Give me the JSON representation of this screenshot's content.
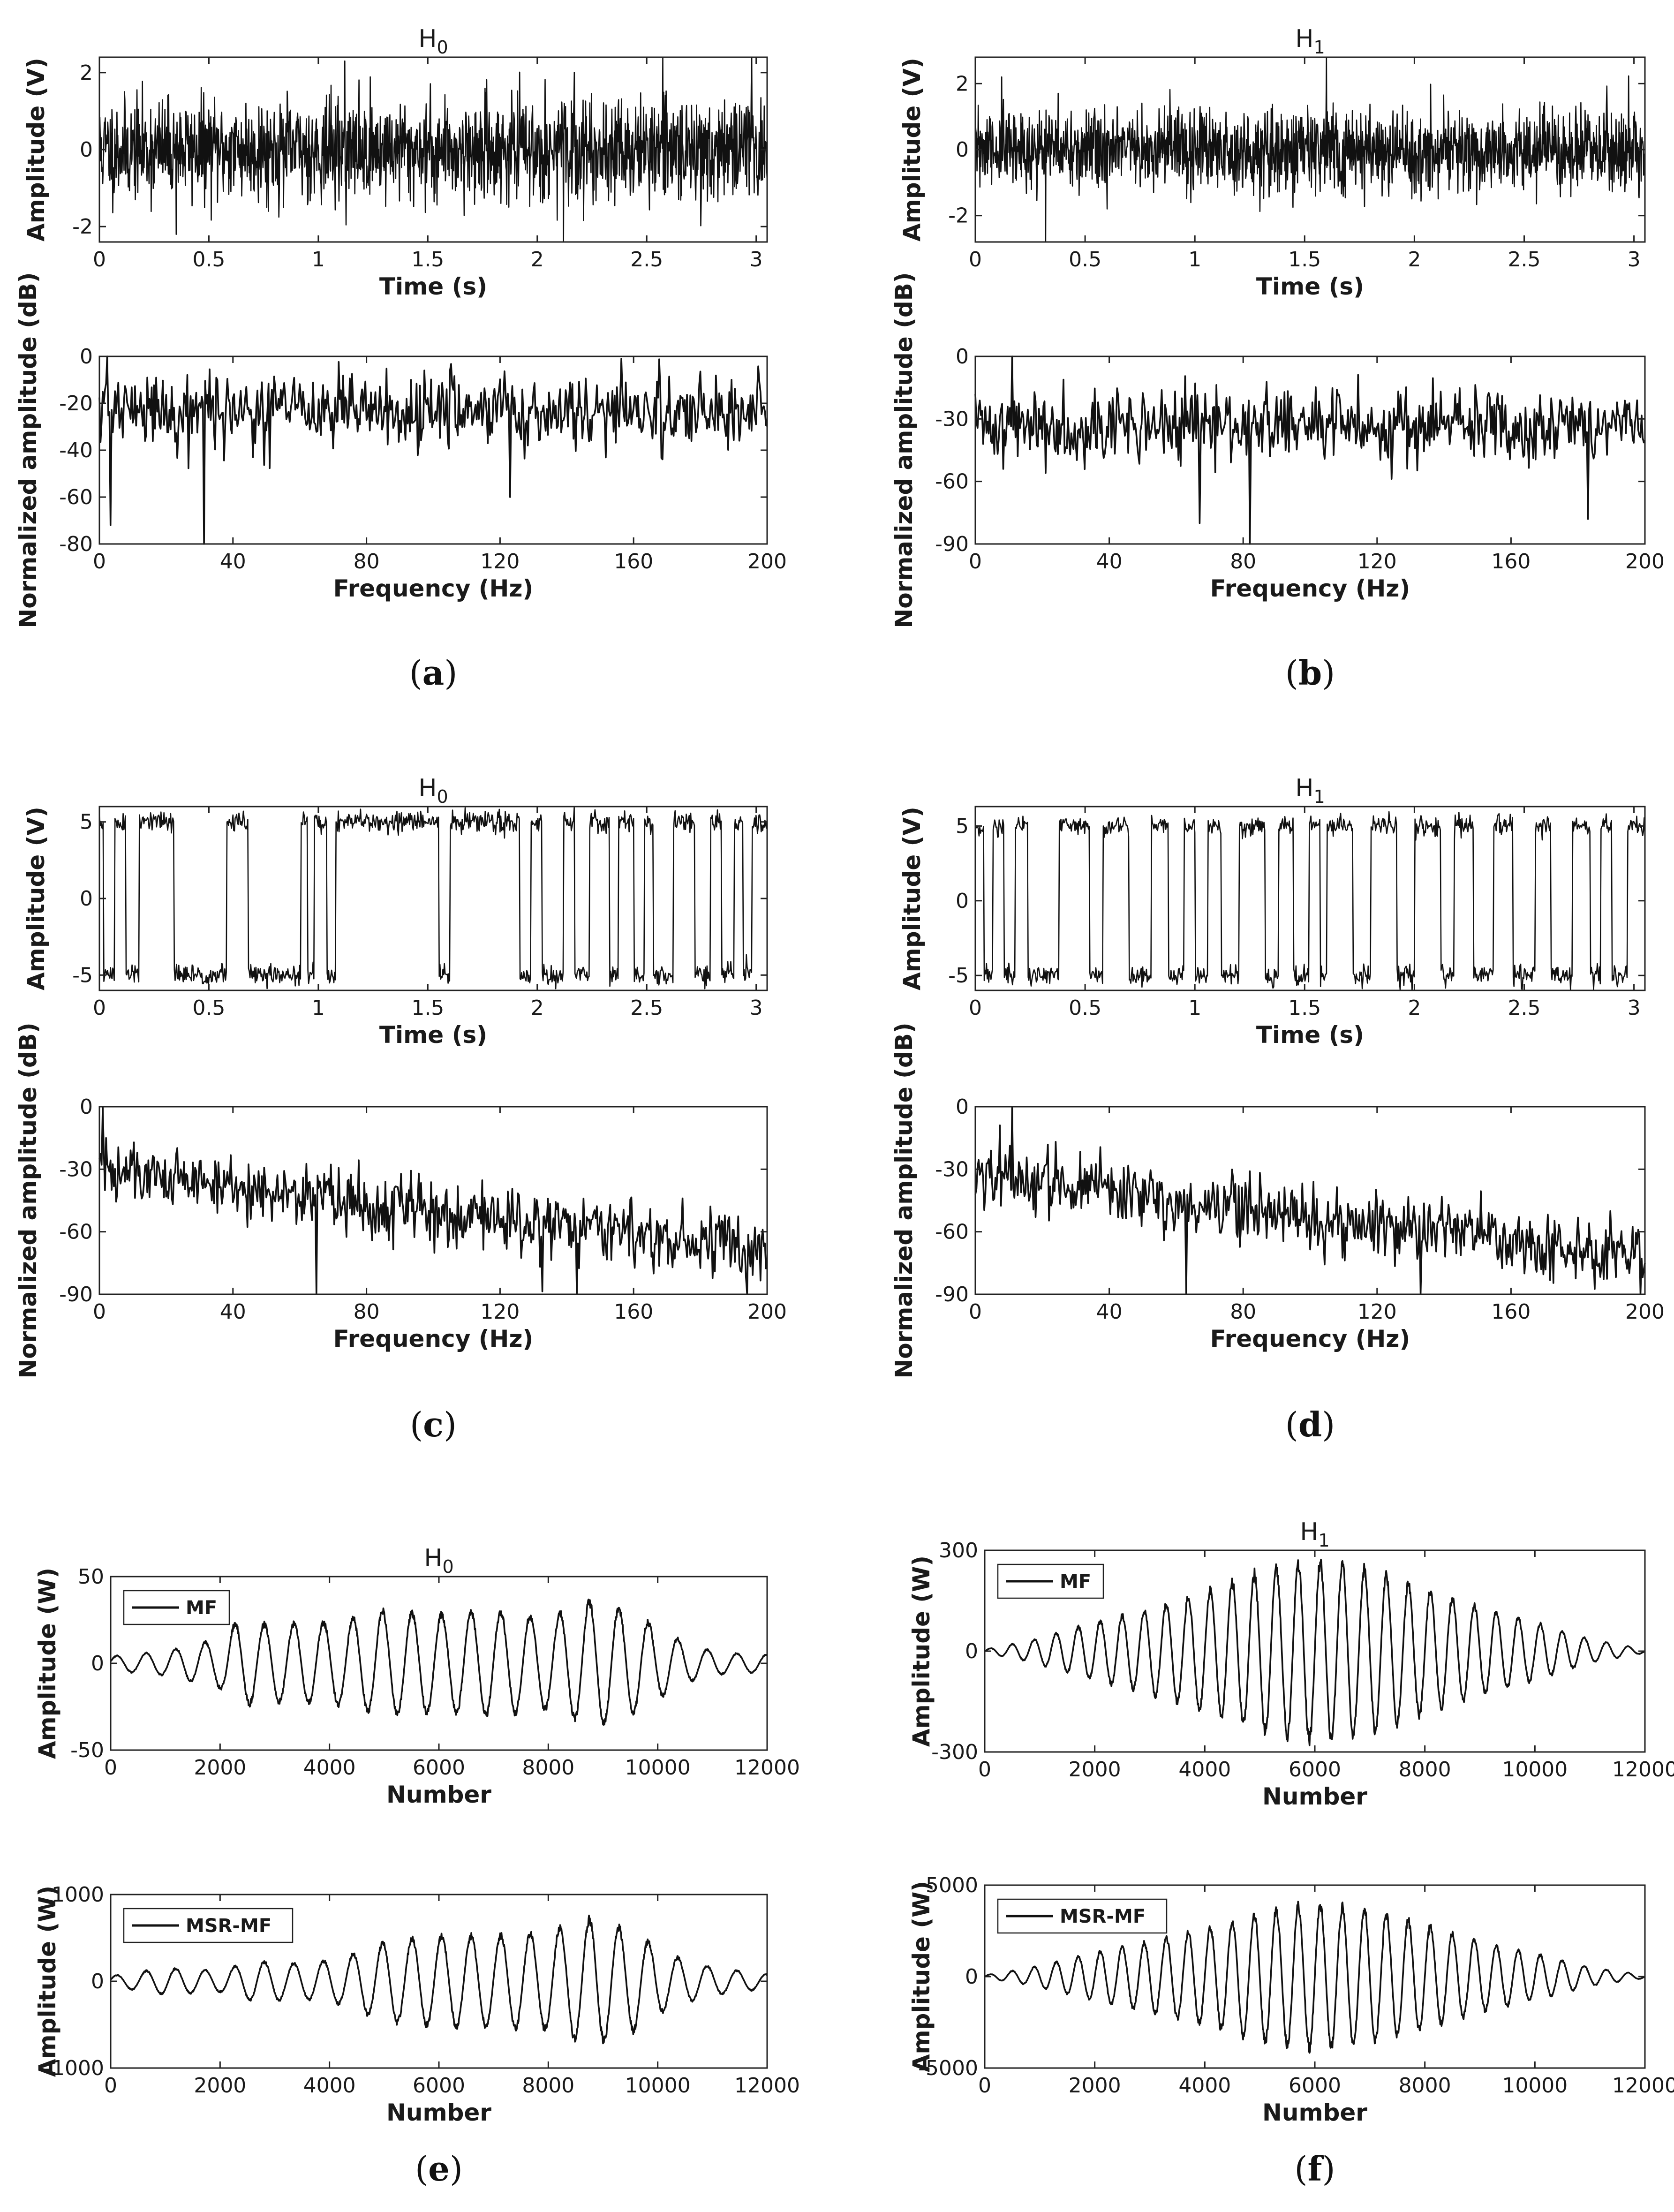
{
  "colors": {
    "line": "#111111",
    "axis": "#222222",
    "background": "#ffffff"
  },
  "captions": [
    "a",
    "b",
    "c",
    "d",
    "e",
    "f"
  ],
  "chart_data": [
    {
      "id": "a_time",
      "type": "line",
      "title": "H",
      "title_sub": "0",
      "xlabel": "Time (s)",
      "ylabel": "Amplitude (V)",
      "xlim": [
        0,
        3.05
      ],
      "ylim": [
        -2.4,
        2.4
      ],
      "xticks": [
        0,
        0.5,
        1,
        1.5,
        2,
        2.5,
        3
      ],
      "yticks": [
        -2,
        0,
        2
      ],
      "series": [
        {
          "name": "signal",
          "kind": "noise",
          "n": 1600,
          "amp": 0.65,
          "clip": 2.4,
          "seed": 11,
          "spikes": [
            [
              2.98,
              2.4
            ],
            [
              2.12,
              -2.4
            ],
            [
              1.12,
              2.3
            ],
            [
              0.35,
              -2.2
            ]
          ]
        }
      ]
    },
    {
      "id": "a_freq",
      "type": "line",
      "title": "",
      "xlabel": "Frequency (Hz)",
      "ylabel": "Normalized amplitude (dB)",
      "xlim": [
        0,
        200
      ],
      "ylim": [
        -80,
        0
      ],
      "xticks": [
        0,
        40,
        80,
        120,
        160,
        200
      ],
      "yticks": [
        -80,
        -60,
        -40,
        -20,
        0
      ],
      "series": [
        {
          "name": "spectrum",
          "kind": "spectrum",
          "n": 600,
          "base": -23,
          "slope": 0,
          "amp": 8,
          "floor": -80,
          "seed": 21,
          "spikes": [
            [
              2.5,
              0
            ],
            [
              31.5,
              -80
            ],
            [
              3.5,
              -72
            ],
            [
              123,
              -60
            ]
          ]
        }
      ]
    },
    {
      "id": "b_time",
      "type": "line",
      "title": "H",
      "title_sub": "1",
      "xlabel": "Time (s)",
      "ylabel": "Amplitude (V)",
      "xlim": [
        0,
        3.05
      ],
      "ylim": [
        -2.8,
        2.8
      ],
      "xticks": [
        0,
        0.5,
        1,
        1.5,
        2,
        2.5,
        3
      ],
      "yticks": [
        -2,
        0,
        2
      ],
      "series": [
        {
          "name": "signal",
          "kind": "noise",
          "n": 1600,
          "amp": 0.62,
          "clip": 2.8,
          "seed": 31,
          "spikes": [
            [
              1.6,
              2.8
            ],
            [
              0.32,
              -2.8
            ],
            [
              0.12,
              2.2
            ]
          ]
        }
      ]
    },
    {
      "id": "b_freq",
      "type": "line",
      "title": "",
      "xlabel": "Frequency (Hz)",
      "ylabel": "Normalized amplitude (dB)",
      "xlim": [
        0,
        200
      ],
      "ylim": [
        -90,
        0
      ],
      "xticks": [
        0,
        40,
        80,
        120,
        160,
        200
      ],
      "yticks": [
        -90,
        -60,
        -30,
        0
      ],
      "series": [
        {
          "name": "spectrum",
          "kind": "spectrum",
          "n": 600,
          "base": -33,
          "slope": 0,
          "amp": 9,
          "floor": -90,
          "seed": 41,
          "spikes": [
            [
              11,
              0
            ],
            [
              82,
              -90
            ],
            [
              67,
              -80
            ],
            [
              183,
              -78
            ]
          ]
        }
      ]
    },
    {
      "id": "c_time",
      "type": "line",
      "title": "H",
      "title_sub": "0",
      "xlabel": "Time (s)",
      "ylabel": "Amplitude (V)",
      "xlim": [
        0,
        3.05
      ],
      "ylim": [
        -6,
        6
      ],
      "xticks": [
        0,
        0.5,
        1,
        1.5,
        2,
        2.5,
        3
      ],
      "yticks": [
        -5,
        0,
        5
      ],
      "series": [
        {
          "name": "signal",
          "kind": "square",
          "n": 900,
          "level": 5,
          "noise": 0.35,
          "seed": 51,
          "switches": [
            0.02,
            0.07,
            0.12,
            0.18,
            0.34,
            0.58,
            0.68,
            0.92,
            0.95,
            0.98,
            1.04,
            1.08,
            1.55,
            1.6,
            1.92,
            1.97,
            2.02,
            2.12,
            2.17,
            2.24,
            2.33,
            2.37,
            2.44,
            2.49,
            2.53,
            2.62,
            2.72,
            2.79,
            2.84,
            2.9,
            2.94,
            2.98
          ]
        }
      ]
    },
    {
      "id": "c_freq",
      "type": "line",
      "title": "",
      "xlabel": "Frequency (Hz)",
      "ylabel": "Normalized amplitude (dB)",
      "xlim": [
        0,
        200
      ],
      "ylim": [
        -90,
        0
      ],
      "xticks": [
        0,
        40,
        80,
        120,
        160,
        200
      ],
      "yticks": [
        -90,
        -60,
        -30,
        0
      ],
      "series": [
        {
          "name": "spectrum",
          "kind": "spectrum",
          "n": 600,
          "base": -30,
          "slope": -0.2,
          "amp": 8,
          "floor": -90,
          "seed": 61,
          "spikes": [
            [
              1,
              0
            ],
            [
              2,
              -15
            ],
            [
              65,
              -90
            ],
            [
              143,
              -90
            ]
          ]
        }
      ]
    },
    {
      "id": "d_time",
      "type": "line",
      "title": "H",
      "title_sub": "1",
      "xlabel": "Time (s)",
      "ylabel": "Amplitude (V)",
      "xlim": [
        0,
        3.05
      ],
      "ylim": [
        -6,
        6.3
      ],
      "xticks": [
        0,
        0.5,
        1,
        1.5,
        2,
        2.5,
        3
      ],
      "yticks": [
        -5,
        0,
        5
      ],
      "series": [
        {
          "name": "signal",
          "kind": "square",
          "n": 900,
          "level": 5,
          "noise": 0.35,
          "seed": 71,
          "switches": [
            0.04,
            0.08,
            0.13,
            0.18,
            0.24,
            0.38,
            0.52,
            0.58,
            0.7,
            0.8,
            0.88,
            0.95,
            1.0,
            1.06,
            1.12,
            1.2,
            1.32,
            1.38,
            1.45,
            1.52,
            1.57,
            1.6,
            1.72,
            1.8,
            1.92,
            2.0,
            2.12,
            2.18,
            2.27,
            2.36,
            2.45,
            2.55,
            2.62,
            2.72,
            2.8,
            2.85,
            2.9,
            2.97
          ]
        }
      ]
    },
    {
      "id": "d_freq",
      "type": "line",
      "title": "",
      "xlabel": "Frequency (Hz)",
      "ylabel": "Normalized amplitude (dB)",
      "xlim": [
        0,
        200
      ],
      "ylim": [
        -90,
        0
      ],
      "xticks": [
        0,
        40,
        80,
        120,
        160,
        200
      ],
      "yticks": [
        -90,
        -60,
        -30,
        0
      ],
      "series": [
        {
          "name": "spectrum",
          "kind": "spectrum",
          "n": 600,
          "base": -33,
          "slope": -0.19,
          "amp": 8,
          "floor": -90,
          "seed": 81,
          "spikes": [
            [
              11,
              0
            ],
            [
              63,
              -90
            ],
            [
              133,
              -90
            ]
          ]
        }
      ]
    },
    {
      "id": "e_mf",
      "type": "line",
      "title": "H",
      "title_sub": "0",
      "xlabel": "Number",
      "ylabel": "Amplitude (W)",
      "xlim": [
        0,
        12000
      ],
      "ylim": [
        -50,
        50
      ],
      "xticks": [
        0,
        2000,
        4000,
        6000,
        8000,
        10000,
        12000
      ],
      "yticks": [
        -50,
        0,
        50
      ],
      "legend": "MF",
      "legend_position": "top-left",
      "series": [
        {
          "name": "MF",
          "kind": "wave",
          "n": 1500,
          "period": 540,
          "phase": 0.3,
          "seed": 91,
          "env": [
            [
              0,
              4
            ],
            [
              1000,
              7
            ],
            [
              2000,
              14
            ],
            [
              2300,
              24
            ],
            [
              3000,
              22
            ],
            [
              4200,
              24
            ],
            [
              5000,
              30
            ],
            [
              6000,
              28
            ],
            [
              7000,
              30
            ],
            [
              8000,
              26
            ],
            [
              8800,
              36
            ],
            [
              9500,
              30
            ],
            [
              10000,
              20
            ],
            [
              10600,
              10
            ],
            [
              11200,
              6
            ],
            [
              12000,
              5
            ]
          ]
        }
      ]
    },
    {
      "id": "e_msr",
      "type": "line",
      "title": "",
      "xlabel": "Number",
      "ylabel": "Amplitude (W)",
      "xlim": [
        0,
        12000
      ],
      "ylim": [
        -1000,
        1000
      ],
      "xticks": [
        0,
        2000,
        4000,
        6000,
        8000,
        10000,
        12000
      ],
      "yticks": [
        -1000,
        0,
        1000
      ],
      "legend": "MSR-MF",
      "legend_position": "top-left",
      "series": [
        {
          "name": "MSR-MF",
          "kind": "wave",
          "n": 1500,
          "period": 540,
          "phase": 0.3,
          "seed": 92,
          "env": [
            [
              0,
              60
            ],
            [
              1000,
              150
            ],
            [
              2000,
              120
            ],
            [
              2600,
              230
            ],
            [
              3500,
              200
            ],
            [
              4200,
              260
            ],
            [
              5000,
              450
            ],
            [
              6000,
              520
            ],
            [
              7000,
              520
            ],
            [
              8000,
              560
            ],
            [
              8800,
              720
            ],
            [
              9600,
              560
            ],
            [
              10200,
              300
            ],
            [
              11000,
              160
            ],
            [
              12000,
              80
            ]
          ]
        }
      ]
    },
    {
      "id": "f_mf",
      "type": "line",
      "title": "H",
      "title_sub": "1",
      "xlabel": "Number",
      "ylabel": "Amplitude (W)",
      "xlim": [
        0,
        12000
      ],
      "ylim": [
        -300,
        300
      ],
      "xticks": [
        0,
        2000,
        4000,
        6000,
        8000,
        10000,
        12000
      ],
      "yticks": [
        -300,
        0,
        300
      ],
      "legend": "MF",
      "legend_position": "top-left",
      "series": [
        {
          "name": "MF",
          "kind": "wave",
          "n": 1500,
          "period": 400,
          "phase": 0.0,
          "seed": 93,
          "env": [
            [
              0,
              5
            ],
            [
              800,
              30
            ],
            [
              2000,
              85
            ],
            [
              3000,
              125
            ],
            [
              4000,
              175
            ],
            [
              5000,
              235
            ],
            [
              6000,
              265
            ],
            [
              7000,
              240
            ],
            [
              8000,
              185
            ],
            [
              9000,
              130
            ],
            [
              10000,
              85
            ],
            [
              11000,
              35
            ],
            [
              12000,
              5
            ]
          ]
        }
      ]
    },
    {
      "id": "f_msr",
      "type": "line",
      "title": "",
      "xlabel": "Number",
      "ylabel": "Amplitude (W)",
      "xlim": [
        0,
        12000
      ],
      "ylim": [
        -5000,
        5000
      ],
      "xticks": [
        0,
        2000,
        4000,
        6000,
        8000,
        10000,
        12000
      ],
      "yticks": [
        -5000,
        0,
        5000
      ],
      "legend": "MSR-MF",
      "legend_position": "top-left",
      "series": [
        {
          "name": "MSR-MF",
          "kind": "wave",
          "n": 1500,
          "period": 400,
          "phase": 0.0,
          "seed": 94,
          "env": [
            [
              0,
              80
            ],
            [
              800,
              450
            ],
            [
              2000,
              1300
            ],
            [
              3000,
              1900
            ],
            [
              4000,
              2600
            ],
            [
              5000,
              3500
            ],
            [
              6000,
              3950
            ],
            [
              7000,
              3600
            ],
            [
              8000,
              2800
            ],
            [
              9000,
              1900
            ],
            [
              10000,
              1250
            ],
            [
              11000,
              500
            ],
            [
              12000,
              80
            ]
          ]
        }
      ]
    }
  ]
}
